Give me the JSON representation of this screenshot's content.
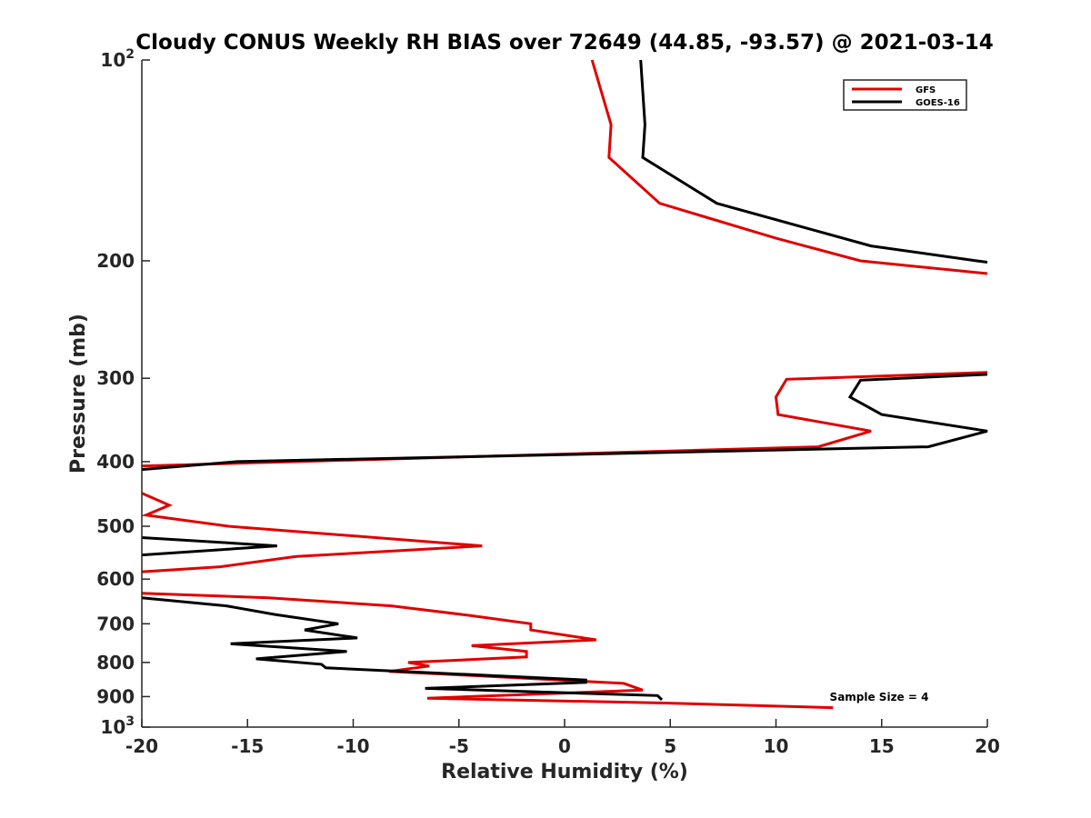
{
  "chart_data": {
    "type": "line",
    "title": "Cloudy CONUS Weekly RH BIAS over 72649 (44.85, -93.57) @ 2021-03-14",
    "xlabel": "Relative Humidity (%)",
    "ylabel": "Pressure (mb)",
    "xlim": [
      -20,
      20
    ],
    "ylim": [
      100,
      1000
    ],
    "y_scale": "log",
    "y_reversed": true,
    "x_ticks": [
      "-20",
      "-15",
      "-10",
      "-5",
      "0",
      "5",
      "10",
      "15",
      "20"
    ],
    "y_ticks": [
      {
        "value": 100,
        "base": "10",
        "exp": "2"
      },
      {
        "value": 200,
        "label": "200"
      },
      {
        "value": 300,
        "label": "300"
      },
      {
        "value": 400,
        "label": "400"
      },
      {
        "value": 500,
        "label": "500"
      },
      {
        "value": 600,
        "label": "600"
      },
      {
        "value": 700,
        "label": "700"
      },
      {
        "value": 800,
        "label": "800"
      },
      {
        "value": 900,
        "label": "900"
      },
      {
        "value": 1000,
        "base": "10",
        "exp": "3"
      }
    ],
    "grid": false,
    "legend_position": "top-right",
    "annotation": "Sample Size = 4",
    "series": [
      {
        "name": "GFS",
        "color": "#e00000",
        "points": [
          [
            1.3,
            100
          ],
          [
            2.2,
            125
          ],
          [
            2.1,
            140
          ],
          [
            4.5,
            164
          ],
          [
            10.0,
            185
          ],
          [
            14.0,
            200
          ],
          [
            20.0,
            209
          ],
          [
            null,
            210
          ],
          [
            20.0,
            294
          ],
          [
            10.5,
            301
          ],
          [
            10.0,
            320
          ],
          [
            10.1,
            340
          ],
          [
            14.5,
            360
          ],
          [
            12.0,
            380
          ],
          [
            -20.0,
            406
          ],
          [
            null,
            420
          ],
          [
            -20.0,
            446
          ],
          [
            -18.7,
            465
          ],
          [
            -19.8,
            481
          ],
          [
            -15.9,
            500
          ],
          [
            -3.9,
            535
          ],
          [
            -12.7,
            555
          ],
          [
            -16.3,
            575
          ],
          [
            -20.0,
            585
          ],
          [
            null,
            600
          ],
          [
            -20.0,
            630
          ],
          [
            -14.0,
            640
          ],
          [
            -8.2,
            658
          ],
          [
            -4.5,
            680
          ],
          [
            -1.6,
            700
          ],
          [
            -1.6,
            715
          ],
          [
            1.5,
            740
          ],
          [
            -4.4,
            755
          ],
          [
            -1.8,
            770
          ],
          [
            -1.8,
            785
          ],
          [
            -7.4,
            800
          ],
          [
            -6.4,
            810
          ],
          [
            -8.3,
            825
          ],
          [
            -5.0,
            835
          ],
          [
            2.8,
            860
          ],
          [
            3.7,
            880
          ],
          [
            -6.5,
            905
          ],
          [
            4.5,
            920
          ],
          [
            12.7,
            935
          ]
        ]
      },
      {
        "name": "GOES-16",
        "color": "#000000",
        "points": [
          [
            3.6,
            100
          ],
          [
            3.8,
            125
          ],
          [
            3.7,
            140
          ],
          [
            7.2,
            164
          ],
          [
            14.5,
            190
          ],
          [
            19.5,
            200
          ],
          [
            20.0,
            201
          ],
          [
            null,
            210
          ],
          [
            20.0,
            296
          ],
          [
            14.0,
            302
          ],
          [
            13.5,
            320
          ],
          [
            15.0,
            340
          ],
          [
            20.0,
            360
          ],
          [
            17.2,
            380
          ],
          [
            -15.5,
            400
          ],
          [
            -20.0,
            411
          ],
          [
            null,
            420
          ],
          [
            -20.0,
            520
          ],
          [
            -13.6,
            535
          ],
          [
            -20.0,
            552
          ],
          [
            null,
            600
          ],
          [
            -20.0,
            640
          ],
          [
            -16.0,
            658
          ],
          [
            -13.7,
            678
          ],
          [
            -10.7,
            700
          ],
          [
            -12.3,
            715
          ],
          [
            -9.8,
            735
          ],
          [
            -15.8,
            750
          ],
          [
            -10.3,
            770
          ],
          [
            -14.6,
            790
          ],
          [
            -11.5,
            805
          ],
          [
            -11.3,
            815
          ],
          [
            1.0,
            850
          ],
          [
            1.0,
            857
          ],
          [
            -6.6,
            875
          ],
          [
            4.4,
            897
          ],
          [
            4.6,
            910
          ]
        ]
      }
    ]
  }
}
